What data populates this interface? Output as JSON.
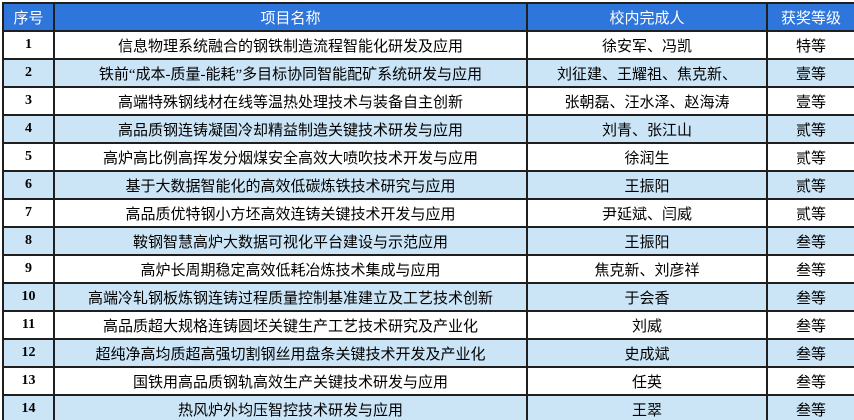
{
  "table": {
    "columns": [
      {
        "label": "序号"
      },
      {
        "label": "项目名称"
      },
      {
        "label": "校内完成人"
      },
      {
        "label": "获奖等级"
      }
    ],
    "rows": [
      {
        "index": "1",
        "project": "信息物理系统融合的钢铁制造流程智能化研发及应用",
        "members": "徐安军、冯凯",
        "award": "特等"
      },
      {
        "index": "2",
        "project": "铁前“成本-质量-能耗”多目标协同智能配矿系统研发与应用",
        "members": "刘征建、王耀祖、焦克新、",
        "award": "壹等"
      },
      {
        "index": "3",
        "project": "高端特殊钢线材在线等温热处理技术与装备自主创新",
        "members": "张朝磊、汪水泽、赵海涛",
        "award": "壹等"
      },
      {
        "index": "4",
        "project": "高品质钢连铸凝固冷却精益制造关键技术研发与应用",
        "members": "刘青、张江山",
        "award": "贰等"
      },
      {
        "index": "5",
        "project": "高炉高比例高挥发分烟煤安全高效大喷吹技术开发与应用",
        "members": "徐润生",
        "award": "贰等"
      },
      {
        "index": "6",
        "project": "基于大数据智能化的高效低碳炼铁技术研究与应用",
        "members": "王振阳",
        "award": "贰等"
      },
      {
        "index": "7",
        "project": "高品质优特钢小方坯高效连铸关键技术开发与应用",
        "members": "尹延斌、闫威",
        "award": "贰等"
      },
      {
        "index": "8",
        "project": "鞍钢智慧高炉大数据可视化平台建设与示范应用",
        "members": "王振阳",
        "award": "叁等"
      },
      {
        "index": "9",
        "project": "高炉长周期稳定高效低耗冶炼技术集成与应用",
        "members": "焦克新、刘彦祥",
        "award": "叁等"
      },
      {
        "index": "10",
        "project": "高端冷轧钢板炼钢连铸过程质量控制基准建立及工艺技术创新",
        "members": "于会香",
        "award": "叁等"
      },
      {
        "index": "11",
        "project": "高品质超大规格连铸圆坯关键生产工艺技术研究及产业化",
        "members": "刘威",
        "award": "叁等"
      },
      {
        "index": "12",
        "project": "超纯净高均质超高强切割钢丝用盘条关键技术开发及产业化",
        "members": "史成斌",
        "award": "叁等"
      },
      {
        "index": "13",
        "project": "国铁用高品质钢轨高效生产关键技术研发与应用",
        "members": "任英",
        "award": "叁等"
      },
      {
        "index": "14",
        "project": "热风炉外均压智控技术研发与应用",
        "members": "王翠",
        "award": "叁等"
      }
    ]
  },
  "colors": {
    "header_bg": "#2e76dc",
    "header_text": "#ffffff",
    "alt_row_bg": "#cbe5f7",
    "row_bg": "#ffffff",
    "border": "#1f1f1f"
  }
}
